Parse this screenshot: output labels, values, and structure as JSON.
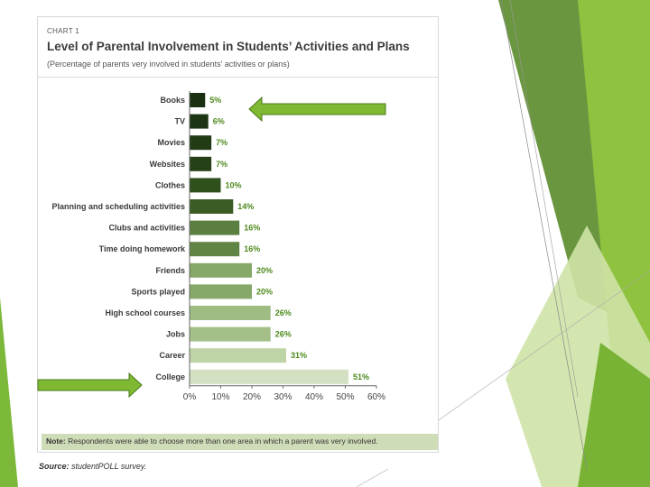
{
  "chart_data": {
    "type": "bar",
    "orientation": "horizontal",
    "label": "CHART 1",
    "title": "Level of Parental Involvement in Students’ Activities and Plans",
    "subtitle": "(Percentage of parents very involved in students’ activities or plans)",
    "categories": [
      "Books",
      "TV",
      "Movies",
      "Websites",
      "Clothes",
      "Planning and scheduling activities",
      "Clubs and activities",
      "Time doing homework",
      "Friends",
      "Sports played",
      "High school courses",
      "Jobs",
      "Career",
      "College"
    ],
    "values": [
      5,
      6,
      7,
      7,
      10,
      14,
      16,
      16,
      20,
      20,
      26,
      26,
      31,
      51
    ],
    "value_labels": [
      "5%",
      "6%",
      "7%",
      "7%",
      "10%",
      "14%",
      "16%",
      "16%",
      "20%",
      "20%",
      "26%",
      "26%",
      "31%",
      "51%"
    ],
    "bar_colors": [
      "#1a3010",
      "#1d3512",
      "#213b14",
      "#254116",
      "#2f4f1c",
      "#3b5d25",
      "#5a7f40",
      "#5f8444",
      "#86a868",
      "#86a868",
      "#9fbd83",
      "#a4c088",
      "#bfd4a6",
      "#d3e0c1"
    ],
    "xlim": [
      0,
      60
    ],
    "xticks": [
      "0%",
      "10%",
      "20%",
      "30%",
      "40%",
      "50%",
      "60%"
    ],
    "xlabel": "",
    "ylabel": "",
    "grid": false,
    "legend": "none"
  },
  "note": {
    "label": "Note:",
    "text": "Respondents were able to choose more than one area in which a parent was very involved."
  },
  "source": {
    "label": "Source:",
    "text": "studentPOLL survey."
  },
  "annotations": {
    "arrows": [
      {
        "target": "Books",
        "direction": "left",
        "color": "#7fb832"
      },
      {
        "target": "College",
        "direction": "right",
        "color": "#7fb832"
      }
    ]
  },
  "theme": {
    "accent": "#8cc63f",
    "accent_dark": "#6a9c2e"
  }
}
